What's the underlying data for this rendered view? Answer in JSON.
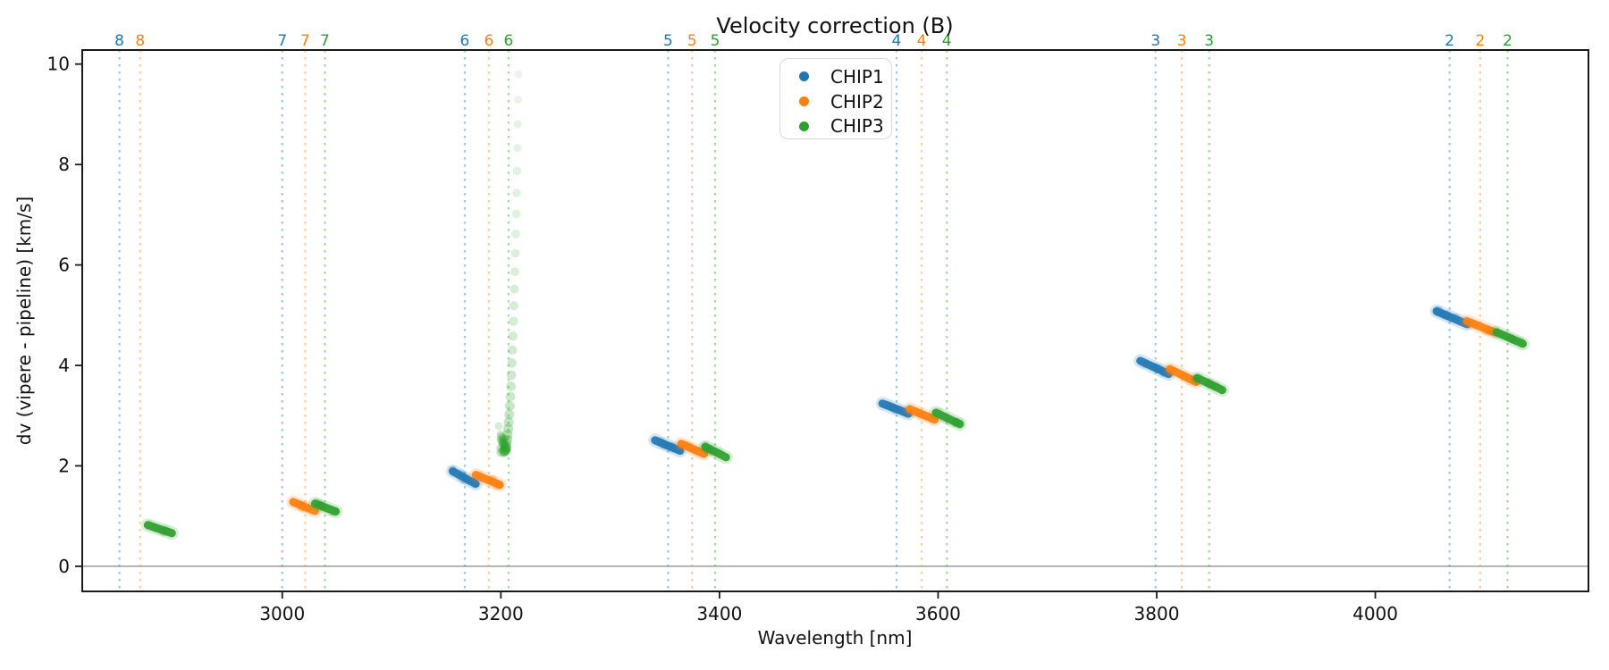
{
  "chart_data": {
    "type": "scatter",
    "title": "Velocity correction (B)",
    "xlabel": "Wavelength [nm]",
    "ylabel": "dv (vipere - pipeline) [km/s]",
    "xlim": [
      2817,
      4195
    ],
    "ylim": [
      -0.5,
      10.28
    ],
    "x_ticks": [
      3000,
      3200,
      3400,
      3600,
      3800,
      4000
    ],
    "y_ticks": [
      0,
      2,
      4,
      6,
      8,
      10
    ],
    "grid": false,
    "zero_line_y": 0,
    "zero_line_color": "#888888",
    "axis_color": "#1a1a1a",
    "legend": {
      "position": "upper center",
      "entries": [
        {
          "label": "CHIP1",
          "color": "#1f77b4"
        },
        {
          "label": "CHIP2",
          "color": "#ff7f0e"
        },
        {
          "label": "CHIP3",
          "color": "#2ca02c"
        }
      ]
    },
    "chip_colors": {
      "CHIP1": "#1f77b4",
      "CHIP2": "#ff7f0e",
      "CHIP3": "#2ca02c"
    },
    "order_lines": [
      {
        "order": "8",
        "chips": [
          {
            "chip": "CHIP1",
            "wavelength": 2851
          },
          {
            "chip": "CHIP2",
            "wavelength": 2870
          }
        ]
      },
      {
        "order": "7",
        "chips": [
          {
            "chip": "CHIP1",
            "wavelength": 3000
          },
          {
            "chip": "CHIP2",
            "wavelength": 3021
          },
          {
            "chip": "CHIP3",
            "wavelength": 3039
          }
        ]
      },
      {
        "order": "6",
        "chips": [
          {
            "chip": "CHIP1",
            "wavelength": 3167
          },
          {
            "chip": "CHIP2",
            "wavelength": 3189
          },
          {
            "chip": "CHIP3",
            "wavelength": 3207
          }
        ]
      },
      {
        "order": "5",
        "chips": [
          {
            "chip": "CHIP1",
            "wavelength": 3353
          },
          {
            "chip": "CHIP2",
            "wavelength": 3375
          },
          {
            "chip": "CHIP3",
            "wavelength": 3396
          }
        ]
      },
      {
        "order": "4",
        "chips": [
          {
            "chip": "CHIP1",
            "wavelength": 3562
          },
          {
            "chip": "CHIP2",
            "wavelength": 3585
          },
          {
            "chip": "CHIP3",
            "wavelength": 3608
          }
        ]
      },
      {
        "order": "3",
        "chips": [
          {
            "chip": "CHIP1",
            "wavelength": 3799
          },
          {
            "chip": "CHIP2",
            "wavelength": 3823
          },
          {
            "chip": "CHIP3",
            "wavelength": 3848
          }
        ]
      },
      {
        "order": "2",
        "chips": [
          {
            "chip": "CHIP1",
            "wavelength": 4068
          },
          {
            "chip": "CHIP2",
            "wavelength": 4096
          },
          {
            "chip": "CHIP3",
            "wavelength": 4121
          }
        ]
      }
    ],
    "clusters": [
      {
        "chip": "CHIP3",
        "order": "8",
        "from": [
          2877,
          0.82
        ],
        "to": [
          2899,
          0.66
        ]
      },
      {
        "chip": "CHIP2",
        "order": "7",
        "from": [
          3010,
          1.28
        ],
        "to": [
          3030,
          1.1
        ]
      },
      {
        "chip": "CHIP3",
        "order": "7",
        "from": [
          3030,
          1.25
        ],
        "to": [
          3049,
          1.09
        ]
      },
      {
        "chip": "CHIP1",
        "order": "6",
        "from": [
          3156,
          1.89
        ],
        "to": [
          3177,
          1.64
        ]
      },
      {
        "chip": "CHIP2",
        "order": "6",
        "from": [
          3177,
          1.82
        ],
        "to": [
          3199,
          1.62
        ]
      },
      {
        "chip": "CHIP1",
        "order": "5",
        "from": [
          3341,
          2.51
        ],
        "to": [
          3364,
          2.3
        ]
      },
      {
        "chip": "CHIP2",
        "order": "5",
        "from": [
          3365,
          2.44
        ],
        "to": [
          3386,
          2.24
        ]
      },
      {
        "chip": "CHIP3",
        "order": "5",
        "from": [
          3387,
          2.38
        ],
        "to": [
          3406,
          2.17
        ]
      },
      {
        "chip": "CHIP1",
        "order": "4",
        "from": [
          3549,
          3.24
        ],
        "to": [
          3573,
          3.04
        ]
      },
      {
        "chip": "CHIP2",
        "order": "4",
        "from": [
          3574,
          3.13
        ],
        "to": [
          3597,
          2.92
        ]
      },
      {
        "chip": "CHIP3",
        "order": "4",
        "from": [
          3598,
          3.06
        ],
        "to": [
          3620,
          2.83
        ]
      },
      {
        "chip": "CHIP1",
        "order": "3",
        "from": [
          3785,
          4.09
        ],
        "to": [
          3811,
          3.83
        ]
      },
      {
        "chip": "CHIP2",
        "order": "3",
        "from": [
          3812,
          3.93
        ],
        "to": [
          3836,
          3.67
        ]
      },
      {
        "chip": "CHIP3",
        "order": "3",
        "from": [
          3837,
          3.75
        ],
        "to": [
          3860,
          3.51
        ]
      },
      {
        "chip": "CHIP1",
        "order": "2",
        "from": [
          4056,
          5.08
        ],
        "to": [
          4084,
          4.82
        ]
      },
      {
        "chip": "CHIP2",
        "order": "2",
        "from": [
          4084,
          4.88
        ],
        "to": [
          4109,
          4.66
        ]
      },
      {
        "chip": "CHIP3",
        "order": "2",
        "from": [
          4111,
          4.66
        ],
        "to": [
          4135,
          4.43
        ]
      }
    ],
    "outlier_trail": {
      "chip": "CHIP3",
      "order": "6",
      "top": [
        3216,
        9.8
      ],
      "bottom": [
        3203,
        2.3
      ],
      "points": 30,
      "dense_blob": [
        3203,
        2.4
      ]
    }
  }
}
